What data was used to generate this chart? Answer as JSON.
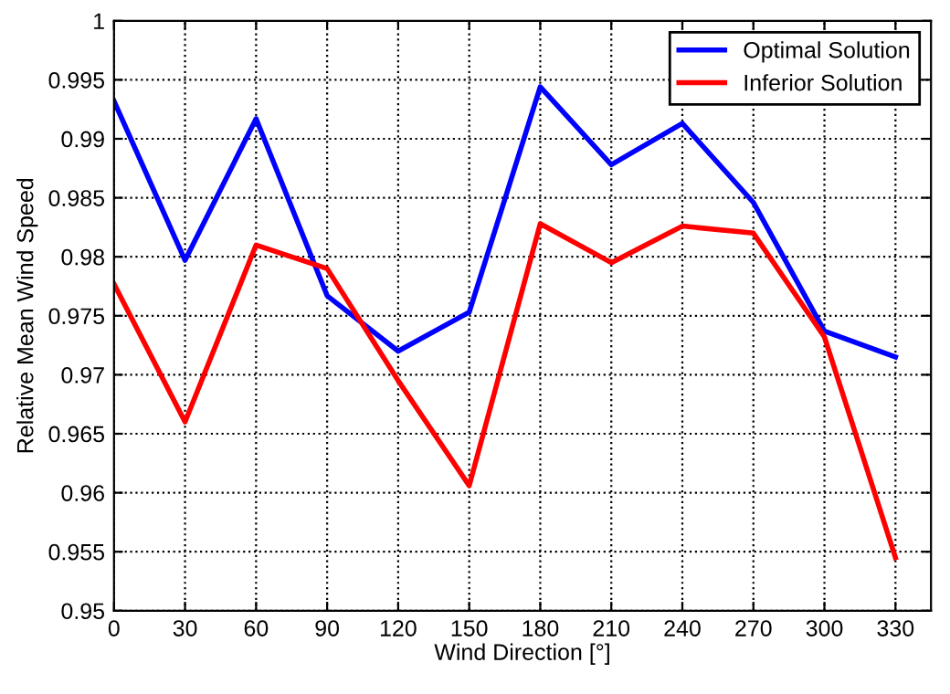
{
  "chart_data": {
    "type": "line",
    "xlabel": "Wind Direction [°]",
    "ylabel": "Relative Mean Wind Speed",
    "x": [
      0,
      30,
      60,
      90,
      120,
      150,
      180,
      210,
      240,
      270,
      300,
      330
    ],
    "series": [
      {
        "name": "Optimal Solution",
        "color": "#0000ff",
        "values": [
          0.9932,
          0.9797,
          0.9917,
          0.9767,
          0.972,
          0.9753,
          0.9944,
          0.9878,
          0.9913,
          0.9846,
          0.9737,
          0.9715
        ]
      },
      {
        "name": "Inferior Solution",
        "color": "#ff0000",
        "values": [
          0.9777,
          0.966,
          0.981,
          0.979,
          0.9695,
          0.9606,
          0.9828,
          0.9795,
          0.9826,
          0.982,
          0.9732,
          0.9545
        ]
      }
    ],
    "xlim": [
      0,
      345
    ],
    "xticks": [
      0,
      30,
      60,
      90,
      120,
      150,
      180,
      210,
      240,
      270,
      300,
      330
    ],
    "ylim": [
      0.95,
      1
    ],
    "yticks": [
      0.95,
      0.955,
      0.96,
      0.965,
      0.97,
      0.975,
      0.98,
      0.985,
      0.99,
      0.995,
      1
    ],
    "grid": true,
    "legend": "top right",
    "marker": "none",
    "line_style": "solid"
  }
}
